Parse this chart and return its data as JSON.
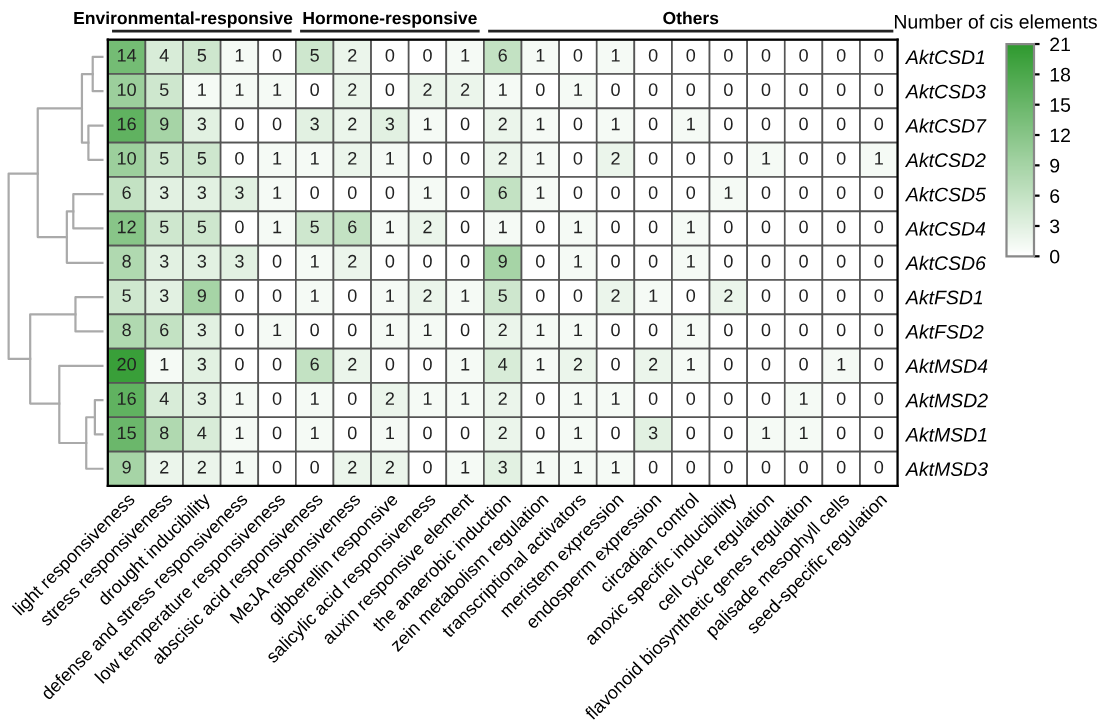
{
  "chart_data": {
    "type": "heatmap",
    "categories": [
      "light responsiveness",
      "stress responsiveness",
      "drought inducibility",
      "defense and stress responsiveness",
      "low temperature responsiveness",
      "abscisic acid responsiveness",
      "MeJA responsiveness",
      "gibberellin responsive",
      "salicylic acid responsiveness",
      "auxin responsive element",
      "the anaerobic induction",
      "zein metabolism regulation",
      "transcriptional activators",
      "meristem expression",
      "endosperm expression",
      "circadian control",
      "anoxic specific inducibility",
      "cell cycle regulation",
      "flavonoid biosynthetic genes regulation",
      "palisade mesophyll cells",
      "seed-specific regulation"
    ],
    "y_categories": [
      "AktCSD1",
      "AktCSD3",
      "AktCSD7",
      "AktCSD2",
      "AktCSD5",
      "AktCSD4",
      "AktCSD6",
      "AktFSD1",
      "AktFSD2",
      "AktMSD4",
      "AktMSD2",
      "AktMSD1",
      "AktMSD3"
    ],
    "cells": [
      [
        14,
        4,
        5,
        1,
        0,
        5,
        2,
        0,
        0,
        1,
        6,
        1,
        0,
        1,
        0,
        0,
        0,
        0,
        0,
        0,
        0
      ],
      [
        10,
        5,
        1,
        1,
        1,
        0,
        2,
        0,
        2,
        2,
        1,
        0,
        1,
        0,
        0,
        0,
        0,
        0,
        0,
        0,
        0
      ],
      [
        16,
        9,
        3,
        0,
        0,
        3,
        2,
        3,
        1,
        0,
        2,
        1,
        0,
        1,
        0,
        1,
        0,
        0,
        0,
        0,
        0
      ],
      [
        10,
        5,
        5,
        0,
        1,
        1,
        2,
        1,
        0,
        0,
        2,
        1,
        0,
        2,
        0,
        0,
        0,
        1,
        0,
        0,
        1
      ],
      [
        6,
        3,
        3,
        3,
        1,
        0,
        0,
        0,
        1,
        0,
        6,
        1,
        0,
        0,
        0,
        0,
        1,
        0,
        0,
        0,
        0
      ],
      [
        12,
        5,
        5,
        0,
        1,
        5,
        6,
        1,
        2,
        0,
        1,
        0,
        1,
        0,
        0,
        1,
        0,
        0,
        0,
        0,
        0
      ],
      [
        8,
        3,
        3,
        3,
        0,
        1,
        2,
        0,
        0,
        0,
        9,
        0,
        1,
        0,
        0,
        1,
        0,
        0,
        0,
        0,
        0
      ],
      [
        5,
        3,
        9,
        0,
        0,
        1,
        0,
        1,
        2,
        1,
        5,
        0,
        0,
        2,
        1,
        0,
        2,
        0,
        0,
        0,
        0
      ],
      [
        8,
        6,
        3,
        0,
        1,
        0,
        0,
        1,
        1,
        0,
        2,
        1,
        1,
        0,
        0,
        1,
        0,
        0,
        0,
        0,
        0
      ],
      [
        20,
        1,
        3,
        0,
        0,
        6,
        2,
        0,
        0,
        1,
        4,
        1,
        2,
        0,
        2,
        1,
        0,
        0,
        0,
        1,
        0
      ],
      [
        16,
        4,
        3,
        1,
        0,
        1,
        0,
        2,
        1,
        1,
        2,
        0,
        1,
        1,
        0,
        0,
        0,
        0,
        1,
        0,
        0
      ],
      [
        15,
        8,
        4,
        1,
        0,
        1,
        0,
        1,
        0,
        0,
        2,
        0,
        1,
        0,
        3,
        0,
        0,
        1,
        1,
        0,
        0
      ],
      [
        9,
        2,
        2,
        1,
        0,
        0,
        2,
        2,
        0,
        1,
        3,
        1,
        1,
        1,
        0,
        0,
        0,
        0,
        0,
        0,
        0
      ]
    ],
    "data_labels": true,
    "clabel": "Number of cis elements",
    "clim": [
      0,
      21
    ],
    "cticks": [
      0,
      3,
      6,
      9,
      12,
      15,
      18,
      21
    ],
    "colors": [
      "#ffffff",
      "#2f9a2f"
    ],
    "annotations": [
      "Environmental-responsive",
      "Hormone-responsive",
      "Others"
    ]
  }
}
